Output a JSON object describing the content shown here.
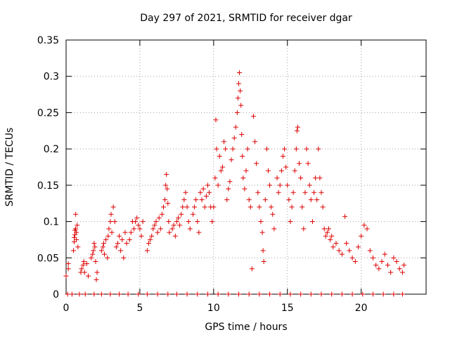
{
  "chart_data": {
    "type": "scatter",
    "title": "Day 297 of 2021, SRMTID for receiver dgar",
    "xlabel": "GPS time / hours",
    "ylabel": "SRMTID / TECUs",
    "xlim": [
      0,
      24.4
    ],
    "ylim": [
      0,
      0.35
    ],
    "x_ticks": [
      0,
      5,
      10,
      15,
      20
    ],
    "x_tick_labels": [
      "0",
      "5",
      "10",
      "15",
      "20"
    ],
    "y_ticks": [
      0,
      0.05,
      0.1,
      0.15,
      0.2,
      0.25,
      0.3,
      0.35
    ],
    "y_tick_labels": [
      "0",
      "0.05",
      "0.1",
      "0.15",
      "0.2",
      "0.25",
      "0.3",
      "0.35"
    ],
    "grid": true,
    "marker": "+",
    "color": "#dd0000",
    "series": [
      {
        "name": "SRMTID",
        "points": [
          [
            0.0,
            0.025
          ],
          [
            0.15,
            0.035
          ],
          [
            0.15,
            0.042
          ],
          [
            0.5,
            0.06
          ],
          [
            0.55,
            0.072
          ],
          [
            0.55,
            0.078
          ],
          [
            0.6,
            0.082
          ],
          [
            0.6,
            0.088
          ],
          [
            0.65,
            0.09
          ],
          [
            0.7,
            0.085
          ],
          [
            0.7,
            0.075
          ],
          [
            0.75,
            0.095
          ],
          [
            0.65,
            0.11
          ],
          [
            0.8,
            0.065
          ],
          [
            1.0,
            0.03
          ],
          [
            1.05,
            0.035
          ],
          [
            1.15,
            0.04
          ],
          [
            1.2,
            0.045
          ],
          [
            1.25,
            0.03
          ],
          [
            1.4,
            0.042
          ],
          [
            1.5,
            0.025
          ],
          [
            1.7,
            0.05
          ],
          [
            1.8,
            0.055
          ],
          [
            1.85,
            0.06
          ],
          [
            1.9,
            0.07
          ],
          [
            1.95,
            0.065
          ],
          [
            2.0,
            0.045
          ],
          [
            2.05,
            0.02
          ],
          [
            2.1,
            0.03
          ],
          [
            2.4,
            0.06
          ],
          [
            2.5,
            0.065
          ],
          [
            2.55,
            0.07
          ],
          [
            2.6,
            0.055
          ],
          [
            2.7,
            0.075
          ],
          [
            2.8,
            0.05
          ],
          [
            2.85,
            0.08
          ],
          [
            2.9,
            0.09
          ],
          [
            3.0,
            0.1
          ],
          [
            3.05,
            0.11
          ],
          [
            3.1,
            0.085
          ],
          [
            3.2,
            0.12
          ],
          [
            3.3,
            0.1
          ],
          [
            3.4,
            0.065
          ],
          [
            3.5,
            0.07
          ],
          [
            3.6,
            0.08
          ],
          [
            3.7,
            0.06
          ],
          [
            3.8,
            0.075
          ],
          [
            3.9,
            0.05
          ],
          [
            4.0,
            0.085
          ],
          [
            4.1,
            0.07
          ],
          [
            4.3,
            0.075
          ],
          [
            4.4,
            0.085
          ],
          [
            4.5,
            0.1
          ],
          [
            4.6,
            0.09
          ],
          [
            4.7,
            0.1
          ],
          [
            4.8,
            0.105
          ],
          [
            4.9,
            0.095
          ],
          [
            5.0,
            0.09
          ],
          [
            5.1,
            0.08
          ],
          [
            5.2,
            0.1
          ],
          [
            5.5,
            0.06
          ],
          [
            5.6,
            0.07
          ],
          [
            5.7,
            0.075
          ],
          [
            5.8,
            0.08
          ],
          [
            5.9,
            0.09
          ],
          [
            6.0,
            0.095
          ],
          [
            6.1,
            0.1
          ],
          [
            6.2,
            0.085
          ],
          [
            6.3,
            0.105
          ],
          [
            6.4,
            0.09
          ],
          [
            6.5,
            0.11
          ],
          [
            6.6,
            0.12
          ],
          [
            6.7,
            0.13
          ],
          [
            6.75,
            0.15
          ],
          [
            6.8,
            0.165
          ],
          [
            6.85,
            0.145
          ],
          [
            6.9,
            0.125
          ],
          [
            6.95,
            0.1
          ],
          [
            7.0,
            0.085
          ],
          [
            7.2,
            0.09
          ],
          [
            7.3,
            0.095
          ],
          [
            7.4,
            0.08
          ],
          [
            7.5,
            0.1
          ],
          [
            7.6,
            0.105
          ],
          [
            7.7,
            0.095
          ],
          [
            7.8,
            0.11
          ],
          [
            7.9,
            0.12
          ],
          [
            8.0,
            0.13
          ],
          [
            8.1,
            0.14
          ],
          [
            8.2,
            0.12
          ],
          [
            8.3,
            0.1
          ],
          [
            8.4,
            0.09
          ],
          [
            8.6,
            0.11
          ],
          [
            8.7,
            0.12
          ],
          [
            8.8,
            0.13
          ],
          [
            8.9,
            0.1
          ],
          [
            9.0,
            0.085
          ],
          [
            9.1,
            0.14
          ],
          [
            9.2,
            0.13
          ],
          [
            9.3,
            0.145
          ],
          [
            9.4,
            0.12
          ],
          [
            9.5,
            0.135
          ],
          [
            9.6,
            0.15
          ],
          [
            9.7,
            0.14
          ],
          [
            9.8,
            0.12
          ],
          [
            9.9,
            0.1
          ],
          [
            10.0,
            0.12
          ],
          [
            10.1,
            0.16
          ],
          [
            10.15,
            0.24
          ],
          [
            10.2,
            0.2
          ],
          [
            10.3,
            0.15
          ],
          [
            10.4,
            0.19
          ],
          [
            10.5,
            0.17
          ],
          [
            10.6,
            0.175
          ],
          [
            10.7,
            0.21
          ],
          [
            10.8,
            0.2
          ],
          [
            10.9,
            0.13
          ],
          [
            11.0,
            0.145
          ],
          [
            11.1,
            0.155
          ],
          [
            11.2,
            0.185
          ],
          [
            11.3,
            0.2
          ],
          [
            11.4,
            0.215
          ],
          [
            11.5,
            0.23
          ],
          [
            11.6,
            0.25
          ],
          [
            11.65,
            0.27
          ],
          [
            11.7,
            0.29
          ],
          [
            11.75,
            0.305
          ],
          [
            11.8,
            0.28
          ],
          [
            11.85,
            0.26
          ],
          [
            11.9,
            0.22
          ],
          [
            11.95,
            0.19
          ],
          [
            12.0,
            0.16
          ],
          [
            12.1,
            0.145
          ],
          [
            12.2,
            0.17
          ],
          [
            12.3,
            0.2
          ],
          [
            12.4,
            0.13
          ],
          [
            12.5,
            0.12
          ],
          [
            12.6,
            0.035
          ],
          [
            12.7,
            0.245
          ],
          [
            12.8,
            0.21
          ],
          [
            12.9,
            0.18
          ],
          [
            13.0,
            0.14
          ],
          [
            13.1,
            0.12
          ],
          [
            13.2,
            0.1
          ],
          [
            13.3,
            0.085
          ],
          [
            13.35,
            0.06
          ],
          [
            13.4,
            0.045
          ],
          [
            13.5,
            0.13
          ],
          [
            13.6,
            0.2
          ],
          [
            13.7,
            0.17
          ],
          [
            13.8,
            0.15
          ],
          [
            13.9,
            0.12
          ],
          [
            14.0,
            0.11
          ],
          [
            14.1,
            0.09
          ],
          [
            14.3,
            0.16
          ],
          [
            14.4,
            0.14
          ],
          [
            14.5,
            0.15
          ],
          [
            14.6,
            0.17
          ],
          [
            14.7,
            0.19
          ],
          [
            14.8,
            0.2
          ],
          [
            14.9,
            0.175
          ],
          [
            15.0,
            0.15
          ],
          [
            15.1,
            0.13
          ],
          [
            15.2,
            0.1
          ],
          [
            15.3,
            0.12
          ],
          [
            15.4,
            0.14
          ],
          [
            15.5,
            0.17
          ],
          [
            15.6,
            0.2
          ],
          [
            15.65,
            0.225
          ],
          [
            15.7,
            0.23
          ],
          [
            15.8,
            0.18
          ],
          [
            15.9,
            0.16
          ],
          [
            16.0,
            0.12
          ],
          [
            16.1,
            0.09
          ],
          [
            16.2,
            0.14
          ],
          [
            16.3,
            0.2
          ],
          [
            16.4,
            0.18
          ],
          [
            16.5,
            0.15
          ],
          [
            16.6,
            0.13
          ],
          [
            16.7,
            0.1
          ],
          [
            16.8,
            0.14
          ],
          [
            16.9,
            0.16
          ],
          [
            17.0,
            0.13
          ],
          [
            17.1,
            0.2
          ],
          [
            17.2,
            0.16
          ],
          [
            17.3,
            0.14
          ],
          [
            17.4,
            0.12
          ],
          [
            17.5,
            0.09
          ],
          [
            17.6,
            0.08
          ],
          [
            17.7,
            0.085
          ],
          [
            17.8,
            0.09
          ],
          [
            17.9,
            0.075
          ],
          [
            18.0,
            0.08
          ],
          [
            18.1,
            0.065
          ],
          [
            18.3,
            0.07
          ],
          [
            18.5,
            0.06
          ],
          [
            18.7,
            0.055
          ],
          [
            18.9,
            0.107
          ],
          [
            19.0,
            0.07
          ],
          [
            19.2,
            0.06
          ],
          [
            19.4,
            0.05
          ],
          [
            19.6,
            0.045
          ],
          [
            19.8,
            0.065
          ],
          [
            20.0,
            0.08
          ],
          [
            20.2,
            0.095
          ],
          [
            20.4,
            0.09
          ],
          [
            20.6,
            0.06
          ],
          [
            20.8,
            0.05
          ],
          [
            21.0,
            0.04
          ],
          [
            21.2,
            0.035
          ],
          [
            21.4,
            0.045
          ],
          [
            21.6,
            0.055
          ],
          [
            21.8,
            0.04
          ],
          [
            22.0,
            0.03
          ],
          [
            22.2,
            0.05
          ],
          [
            22.4,
            0.045
          ],
          [
            22.6,
            0.035
          ],
          [
            22.8,
            0.03
          ],
          [
            22.9,
            0.04
          ],
          [
            0.1,
            0
          ],
          [
            0.4,
            0
          ],
          [
            0.9,
            0
          ],
          [
            1.3,
            0
          ],
          [
            1.9,
            0
          ],
          [
            2.4,
            0
          ],
          [
            3.0,
            0
          ],
          [
            3.6,
            0
          ],
          [
            4.2,
            0
          ],
          [
            4.9,
            0
          ],
          [
            5.5,
            0
          ],
          [
            6.2,
            0
          ],
          [
            6.9,
            0
          ],
          [
            7.5,
            0
          ],
          [
            8.2,
            0
          ],
          [
            8.9,
            0
          ],
          [
            9.6,
            0
          ],
          [
            10.3,
            0
          ],
          [
            11.0,
            0
          ],
          [
            11.7,
            0
          ],
          [
            12.4,
            0
          ],
          [
            13.1,
            0
          ],
          [
            13.8,
            0
          ],
          [
            14.5,
            0
          ],
          [
            15.2,
            0
          ],
          [
            15.9,
            0
          ],
          [
            16.6,
            0
          ],
          [
            17.3,
            0
          ],
          [
            18.0,
            0
          ],
          [
            18.7,
            0
          ],
          [
            19.4,
            0
          ],
          [
            20.1,
            0
          ],
          [
            20.8,
            0
          ],
          [
            21.5,
            0
          ],
          [
            22.2,
            0
          ],
          [
            22.8,
            0
          ]
        ]
      }
    ]
  }
}
